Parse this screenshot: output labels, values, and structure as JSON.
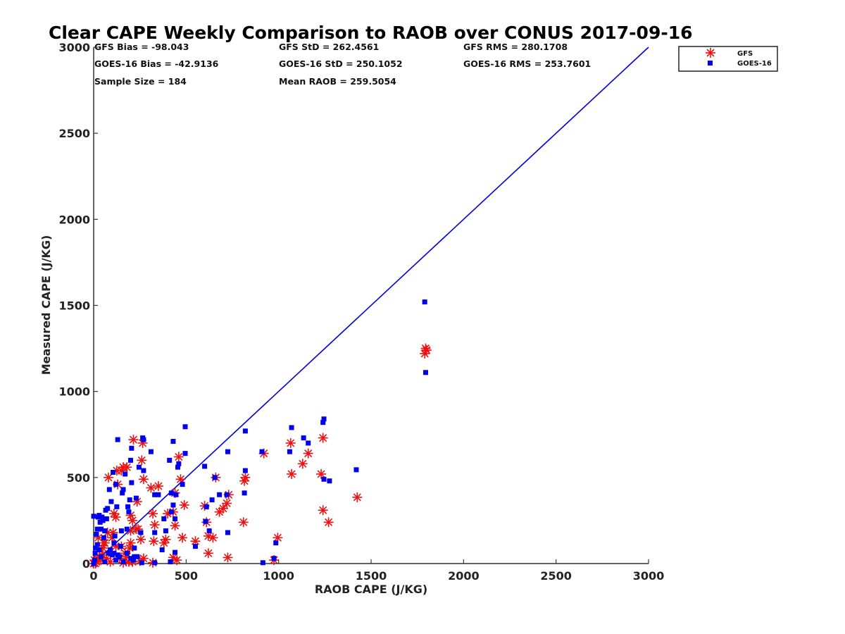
{
  "chart_data": {
    "type": "scatter",
    "title": "Clear CAPE Weekly Comparison to RAOB over CONUS 2017-09-16",
    "xlabel": "RAOB CAPE (J/KG)",
    "ylabel": "Measured CAPE (J/KG)",
    "xlim": [
      0,
      3000
    ],
    "ylim": [
      0,
      3000
    ],
    "x_ticks": [
      "0",
      "500",
      "1000",
      "1500",
      "2000",
      "2500",
      "3000"
    ],
    "y_ticks": [
      "0",
      "500",
      "1000",
      "1500",
      "2000",
      "2500",
      "3000"
    ],
    "grid": false,
    "legend_position": "top-right",
    "annotations": [
      "GFS Bias = -98.043",
      "GFS StD = 262.4561",
      "GFS RMS = 280.1708",
      "GOES-16 Bias = -42.9136",
      "GOES-16 StD = 250.1052",
      "GOES-16 RMS = 253.7601",
      "Sample Size = 184",
      "Mean RAOB = 259.5054"
    ],
    "reference_line": {
      "x": [
        0,
        3000
      ],
      "y": [
        0,
        3000
      ],
      "color": "#0000dd"
    },
    "series": [
      {
        "name": "GFS",
        "marker": "asterisk",
        "color": "#ee1111",
        "points": [
          [
            1790,
            1220
          ],
          [
            1795,
            1250
          ],
          [
            1800,
            1240
          ],
          [
            1240,
            730
          ],
          [
            1425,
            385
          ],
          [
            1240,
            310
          ],
          [
            1270,
            240
          ],
          [
            1065,
            700
          ],
          [
            1160,
            640
          ],
          [
            1130,
            580
          ],
          [
            1070,
            520
          ],
          [
            1230,
            520
          ],
          [
            920,
            640
          ],
          [
            995,
            150
          ],
          [
            975,
            20
          ],
          [
            820,
            500
          ],
          [
            815,
            480
          ],
          [
            810,
            240
          ],
          [
            725,
            35
          ],
          [
            720,
            350
          ],
          [
            730,
            400
          ],
          [
            680,
            300
          ],
          [
            700,
            320
          ],
          [
            660,
            500
          ],
          [
            645,
            150
          ],
          [
            620,
            160
          ],
          [
            610,
            240
          ],
          [
            600,
            335
          ],
          [
            620,
            60
          ],
          [
            550,
            130
          ],
          [
            490,
            340
          ],
          [
            480,
            150
          ],
          [
            470,
            490
          ],
          [
            460,
            620
          ],
          [
            440,
            410
          ],
          [
            430,
            300
          ],
          [
            440,
            220
          ],
          [
            450,
            20
          ],
          [
            430,
            35
          ],
          [
            400,
            290
          ],
          [
            390,
            140
          ],
          [
            380,
            120
          ],
          [
            350,
            450
          ],
          [
            330,
            225
          ],
          [
            320,
            290
          ],
          [
            310,
            440
          ],
          [
            325,
            130
          ],
          [
            320,
            5
          ],
          [
            265,
            700
          ],
          [
            260,
            600
          ],
          [
            270,
            490
          ],
          [
            255,
            140
          ],
          [
            235,
            360
          ],
          [
            240,
            200
          ],
          [
            230,
            200
          ],
          [
            215,
            720
          ],
          [
            210,
            250
          ],
          [
            200,
            280
          ],
          [
            200,
            190
          ],
          [
            195,
            90
          ],
          [
            190,
            10
          ],
          [
            180,
            560
          ],
          [
            160,
            560
          ],
          [
            150,
            540
          ],
          [
            130,
            460
          ],
          [
            125,
            540
          ],
          [
            120,
            270
          ],
          [
            110,
            290
          ],
          [
            105,
            180
          ],
          [
            100,
            150
          ],
          [
            120,
            100
          ],
          [
            80,
            500
          ],
          [
            75,
            180
          ],
          [
            60,
            120
          ],
          [
            55,
            120
          ],
          [
            50,
            90
          ],
          [
            45,
            50
          ],
          [
            40,
            20
          ],
          [
            30,
            40
          ],
          [
            25,
            150
          ],
          [
            20,
            30
          ],
          [
            15,
            10
          ],
          [
            10,
            0
          ],
          [
            5,
            20
          ],
          [
            0,
            0
          ],
          [
            70,
            30
          ],
          [
            90,
            10
          ],
          [
            140,
            30
          ],
          [
            160,
            5
          ],
          [
            180,
            40
          ],
          [
            150,
            100
          ],
          [
            170,
            60
          ],
          [
            200,
            120
          ],
          [
            210,
            10
          ],
          [
            250,
            15
          ],
          [
            270,
            30
          ]
        ]
      },
      {
        "name": "GOES-16",
        "marker": "square",
        "color": "#0000ee",
        "points": [
          [
            1790,
            1520
          ],
          [
            1795,
            1110
          ],
          [
            1245,
            840
          ],
          [
            1240,
            820
          ],
          [
            1420,
            545
          ],
          [
            1245,
            490
          ],
          [
            1275,
            480
          ],
          [
            1070,
            790
          ],
          [
            1135,
            730
          ],
          [
            1160,
            700
          ],
          [
            1060,
            650
          ],
          [
            910,
            650
          ],
          [
            975,
            30
          ],
          [
            985,
            120
          ],
          [
            915,
            5
          ],
          [
            820,
            770
          ],
          [
            820,
            540
          ],
          [
            815,
            410
          ],
          [
            725,
            650
          ],
          [
            720,
            400
          ],
          [
            725,
            180
          ],
          [
            680,
            400
          ],
          [
            655,
            500
          ],
          [
            640,
            370
          ],
          [
            625,
            190
          ],
          [
            610,
            330
          ],
          [
            600,
            565
          ],
          [
            605,
            245
          ],
          [
            550,
            100
          ],
          [
            495,
            795
          ],
          [
            495,
            640
          ],
          [
            480,
            460
          ],
          [
            460,
            580
          ],
          [
            455,
            560
          ],
          [
            445,
            400
          ],
          [
            430,
            710
          ],
          [
            430,
            340
          ],
          [
            420,
            410
          ],
          [
            410,
            600
          ],
          [
            420,
            300
          ],
          [
            415,
            10
          ],
          [
            440,
            260
          ],
          [
            440,
            65
          ],
          [
            390,
            190
          ],
          [
            380,
            260
          ],
          [
            370,
            80
          ],
          [
            350,
            400
          ],
          [
            330,
            400
          ],
          [
            330,
            180
          ],
          [
            330,
            5
          ],
          [
            310,
            650
          ],
          [
            270,
            720
          ],
          [
            265,
            730
          ],
          [
            270,
            540
          ],
          [
            255,
            180
          ],
          [
            245,
            560
          ],
          [
            235,
            40
          ],
          [
            230,
            380
          ],
          [
            220,
            90
          ],
          [
            215,
            20
          ],
          [
            205,
            470
          ],
          [
            205,
            670
          ],
          [
            200,
            600
          ],
          [
            195,
            370
          ],
          [
            190,
            300
          ],
          [
            185,
            330
          ],
          [
            180,
            200
          ],
          [
            170,
            520
          ],
          [
            160,
            430
          ],
          [
            155,
            410
          ],
          [
            150,
            190
          ],
          [
            145,
            100
          ],
          [
            140,
            40
          ],
          [
            130,
            720
          ],
          [
            125,
            330
          ],
          [
            120,
            460
          ],
          [
            115,
            160
          ],
          [
            110,
            120
          ],
          [
            105,
            530
          ],
          [
            95,
            360
          ],
          [
            85,
            430
          ],
          [
            75,
            320
          ],
          [
            70,
            260
          ],
          [
            65,
            310
          ],
          [
            60,
            190
          ],
          [
            55,
            150
          ],
          [
            50,
            250
          ],
          [
            45,
            270
          ],
          [
            40,
            200
          ],
          [
            35,
            240
          ],
          [
            30,
            280
          ],
          [
            25,
            270
          ],
          [
            20,
            200
          ],
          [
            15,
            170
          ],
          [
            10,
            90
          ],
          [
            8,
            60
          ],
          [
            5,
            20
          ],
          [
            0,
            0
          ],
          [
            0,
            275
          ],
          [
            20,
            110
          ],
          [
            30,
            80
          ],
          [
            40,
            40
          ],
          [
            60,
            10
          ],
          [
            80,
            60
          ],
          [
            100,
            50
          ],
          [
            120,
            20
          ],
          [
            160,
            10
          ],
          [
            180,
            60
          ],
          [
            200,
            30
          ],
          [
            220,
            40
          ],
          [
            260,
            5
          ],
          [
            90,
            80
          ],
          [
            110,
            60
          ],
          [
            130,
            50
          ]
        ]
      }
    ]
  }
}
